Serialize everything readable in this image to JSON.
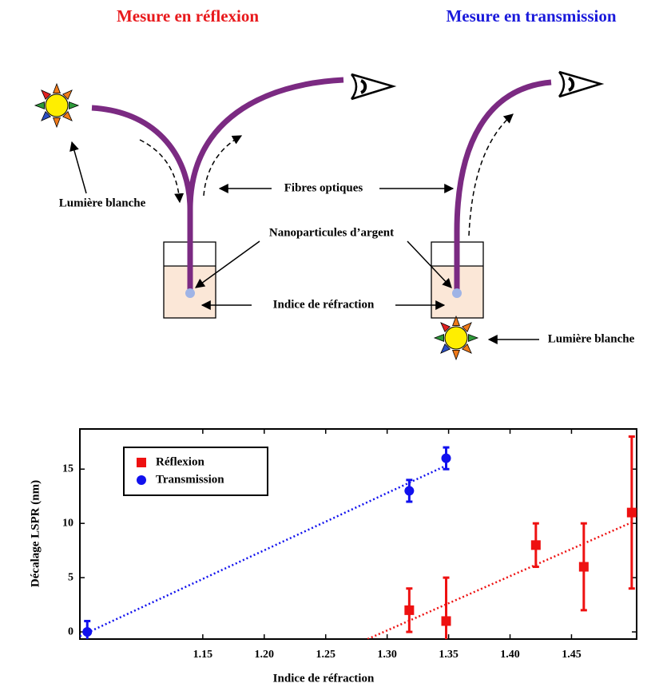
{
  "diagram": {
    "titles": [
      "Mesure en réflexion",
      "Mesure en transmission"
    ],
    "labels": [
      "Lumière blanche",
      "Fibres optiques",
      "Nanoparticules d’argent",
      "Indice de réfraction",
      "Lumière blanche"
    ]
  },
  "chart_data": {
    "type": "scatter",
    "xlabel": "Indice de réfraction",
    "ylabel": "Décalage LSPR (nm)",
    "xlim": [
      1.05,
      1.503
    ],
    "ylim": [
      -0.66,
      18.7
    ],
    "xticks": [
      1.15,
      {
        "value": 1.2,
        "label": "1.20"
      },
      1.25,
      {
        "value": 1.3,
        "label": "1.30"
      },
      1.35,
      {
        "value": 1.4,
        "label": "1.40"
      },
      1.45
    ],
    "yticks": [
      0,
      5,
      10,
      15
    ],
    "legend": "upper left",
    "trendline": true,
    "series": [
      {
        "name": "Réflexion",
        "color": "#ee1111",
        "marker": "square",
        "x": [
          1.318,
          1.348,
          1.421,
          1.46,
          1.499
        ],
        "values": [
          2,
          1,
          8,
          6,
          11
        ],
        "errors": [
          2,
          4,
          2,
          4,
          7
        ]
      },
      {
        "name": "Transmission",
        "color": "#1111ee",
        "marker": "circle",
        "x": [
          1.056,
          1.318,
          1.348
        ],
        "values": [
          0,
          13,
          16
        ],
        "errors": [
          1,
          1,
          1
        ]
      }
    ]
  }
}
